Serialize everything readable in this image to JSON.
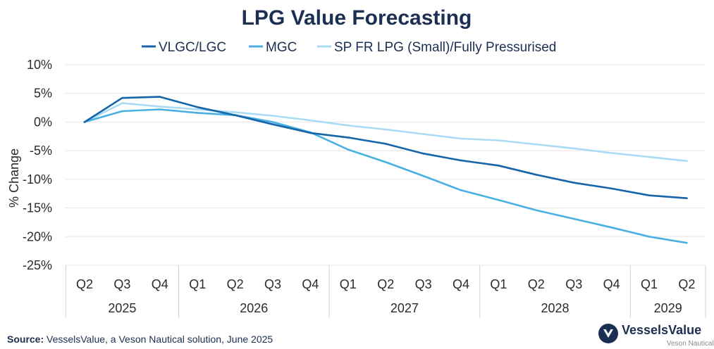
{
  "source": {
    "label": "Source:",
    "text": " VesselsValue, a Veson Nautical solution, June 2025"
  },
  "logo": {
    "name": "VesselsValue",
    "subtitle": "Veson Nautical",
    "icon": "vesselsvalue-logo-icon"
  },
  "colors": {
    "VLGC/LGC": "#1565a8",
    "MGC": "#4ab0e2",
    "SP FR LPG (Small)/Fully Pressurised": "#a9dcf4"
  },
  "chart_data": {
    "type": "line",
    "title": "LPG Value Forecasting",
    "ylabel": "% Change",
    "xlabel": "",
    "ylim": [
      -25,
      10
    ],
    "yticks": [
      10,
      5,
      0,
      -5,
      -10,
      -15,
      -20,
      -25
    ],
    "ytick_labels": [
      "10%",
      "5%",
      "0%",
      "-5%",
      "-10%",
      "-15%",
      "-20%",
      "-25%"
    ],
    "categories": [
      "Q2",
      "Q3",
      "Q4",
      "Q1",
      "Q2",
      "Q3",
      "Q4",
      "Q1",
      "Q2",
      "Q3",
      "Q4",
      "Q1",
      "Q2",
      "Q3",
      "Q4",
      "Q1",
      "Q2"
    ],
    "year_groups": [
      {
        "label": "2025",
        "start": 0,
        "end": 2
      },
      {
        "label": "2026",
        "start": 3,
        "end": 6
      },
      {
        "label": "2027",
        "start": 7,
        "end": 10
      },
      {
        "label": "2028",
        "start": 11,
        "end": 14
      },
      {
        "label": "2029",
        "start": 15,
        "end": 16
      }
    ],
    "legend_position": "top",
    "grid": true,
    "series": [
      {
        "name": "VLGC/LGC",
        "values": [
          0,
          4.2,
          4.4,
          2.6,
          1.2,
          -0.4,
          -1.9,
          -2.7,
          -3.8,
          -5.5,
          -6.7,
          -7.6,
          -9.2,
          -10.6,
          -11.6,
          -12.8,
          -13.3
        ]
      },
      {
        "name": "MGC",
        "values": [
          0,
          1.9,
          2.2,
          1.6,
          1.2,
          0.0,
          -1.8,
          -4.8,
          -7.0,
          -9.4,
          -11.9,
          -13.6,
          -15.4,
          -16.9,
          -18.4,
          -20.0,
          -21.1
        ]
      },
      {
        "name": "SP FR LPG (Small)/Fully Pressurised",
        "values": [
          0,
          3.3,
          2.7,
          2.2,
          1.7,
          1.1,
          0.3,
          -0.6,
          -1.3,
          -2.1,
          -2.9,
          -3.2,
          -3.9,
          -4.6,
          -5.4,
          -6.1,
          -6.8
        ]
      }
    ]
  }
}
